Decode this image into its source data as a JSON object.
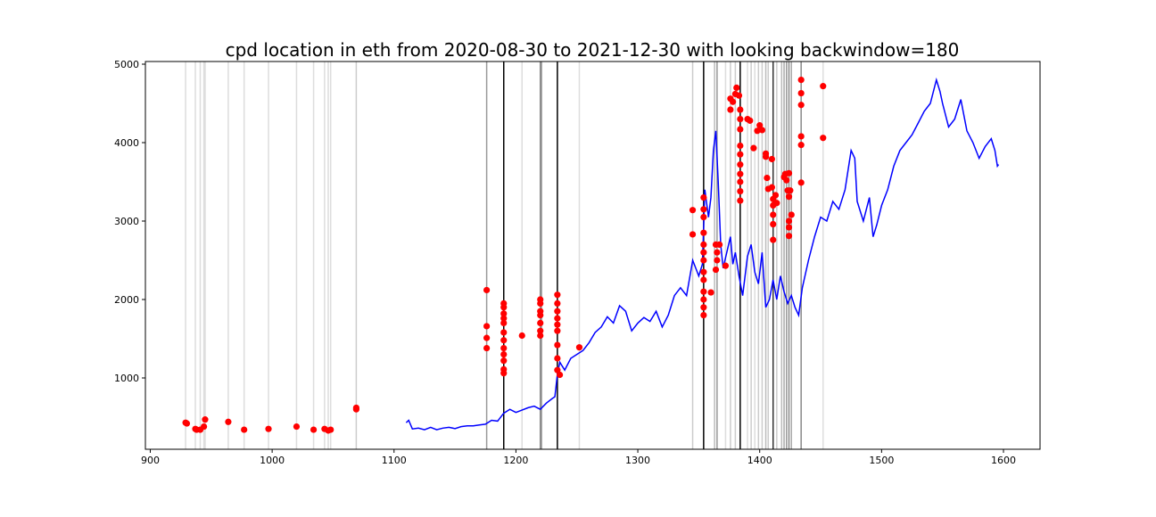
{
  "chart_data": {
    "type": "line",
    "title": "cpd location in eth from 2020-08-30 to 2021-12-30 with looking backwindow=180",
    "xlim": [
      896,
      1630
    ],
    "ylim": [
      91,
      5034
    ],
    "xticks": [
      900,
      1000,
      1100,
      1200,
      1300,
      1400,
      1500,
      1600
    ],
    "yticks": [
      1000,
      2000,
      3000,
      4000,
      5000
    ],
    "vlines": [
      {
        "x": 929,
        "color": "#dddddd"
      },
      {
        "x": 937,
        "color": "#dddddd"
      },
      {
        "x": 941,
        "color": "#dddddd"
      },
      {
        "x": 944,
        "color": "#dddddd"
      },
      {
        "x": 945,
        "color": "#dddddd"
      },
      {
        "x": 964,
        "color": "#dddddd"
      },
      {
        "x": 977,
        "color": "#dddddd"
      },
      {
        "x": 997,
        "color": "#dddddd"
      },
      {
        "x": 1020,
        "color": "#dddddd"
      },
      {
        "x": 1034,
        "color": "#dddddd"
      },
      {
        "x": 1043,
        "color": "#dddddd"
      },
      {
        "x": 1046,
        "color": "#dddddd"
      },
      {
        "x": 1048,
        "color": "#dddddd"
      },
      {
        "x": 1069,
        "color": "#cccccc"
      },
      {
        "x": 1176,
        "color": "#999999"
      },
      {
        "x": 1190,
        "color": "#000000"
      },
      {
        "x": 1205,
        "color": "#dddddd"
      },
      {
        "x": 1220,
        "color": "#888888"
      },
      {
        "x": 1221,
        "color": "#999999"
      },
      {
        "x": 1234,
        "color": "#000000"
      },
      {
        "x": 1252,
        "color": "#dddddd"
      },
      {
        "x": 1345,
        "color": "#cccccc"
      },
      {
        "x": 1354,
        "color": "#000000"
      },
      {
        "x": 1363,
        "color": "#bbbbbb"
      },
      {
        "x": 1365,
        "color": "#999999"
      },
      {
        "x": 1372,
        "color": "#dddddd"
      },
      {
        "x": 1376,
        "color": "#cccccc"
      },
      {
        "x": 1380,
        "color": "#cccccc"
      },
      {
        "x": 1384,
        "color": "#000000"
      },
      {
        "x": 1390,
        "color": "#dddddd"
      },
      {
        "x": 1393,
        "color": "#cccccc"
      },
      {
        "x": 1396,
        "color": "#dddddd"
      },
      {
        "x": 1399,
        "color": "#cccccc"
      },
      {
        "x": 1402,
        "color": "#cccccc"
      },
      {
        "x": 1405,
        "color": "#bbbbbb"
      },
      {
        "x": 1407,
        "color": "#cccccc"
      },
      {
        "x": 1411,
        "color": "#333333"
      },
      {
        "x": 1414,
        "color": "#cccccc"
      },
      {
        "x": 1418,
        "color": "#bbbbbb"
      },
      {
        "x": 1420,
        "color": "#aaaaaa"
      },
      {
        "x": 1422,
        "color": "#999999"
      },
      {
        "x": 1424,
        "color": "#888888"
      },
      {
        "x": 1426,
        "color": "#aaaaaa"
      },
      {
        "x": 1434,
        "color": "#888888"
      },
      {
        "x": 1452,
        "color": "#dddddd"
      }
    ],
    "series": [
      {
        "type": "line",
        "color": "#0000ff",
        "x": [
          1110,
          1112,
          1115,
          1120,
          1125,
          1130,
          1135,
          1140,
          1145,
          1150,
          1155,
          1160,
          1165,
          1170,
          1175,
          1180,
          1185,
          1190,
          1195,
          1200,
          1205,
          1210,
          1215,
          1220,
          1225,
          1230,
          1232,
          1234,
          1236,
          1240,
          1245,
          1250,
          1255,
          1260,
          1265,
          1270,
          1275,
          1280,
          1285,
          1290,
          1295,
          1300,
          1305,
          1310,
          1315,
          1320,
          1325,
          1330,
          1335,
          1340,
          1345,
          1350,
          1353,
          1355,
          1358,
          1360,
          1362,
          1364,
          1366,
          1368,
          1370,
          1373,
          1376,
          1378,
          1380,
          1383,
          1386,
          1390,
          1393,
          1396,
          1399,
          1402,
          1405,
          1408,
          1411,
          1414,
          1417,
          1420,
          1423,
          1426,
          1429,
          1432,
          1435,
          1440,
          1445,
          1450,
          1455,
          1460,
          1465,
          1470,
          1475,
          1478,
          1480,
          1485,
          1490,
          1493,
          1496,
          1500,
          1505,
          1510,
          1515,
          1520,
          1525,
          1530,
          1535,
          1540,
          1545,
          1548,
          1550,
          1555,
          1560,
          1565,
          1570,
          1575,
          1580,
          1585,
          1590,
          1593,
          1595,
          1596
        ],
        "values": [
          430,
          460,
          350,
          360,
          340,
          370,
          340,
          360,
          370,
          355,
          380,
          390,
          390,
          400,
          410,
          460,
          450,
          550,
          600,
          560,
          590,
          620,
          640,
          600,
          680,
          740,
          760,
          1050,
          1200,
          1100,
          1250,
          1300,
          1350,
          1450,
          1580,
          1650,
          1780,
          1700,
          1920,
          1850,
          1600,
          1700,
          1770,
          1720,
          1850,
          1650,
          1800,
          2050,
          2150,
          2050,
          2500,
          2300,
          2450,
          3400,
          3050,
          3300,
          3900,
          4150,
          3500,
          2700,
          2400,
          2600,
          2800,
          2450,
          2600,
          2300,
          2050,
          2550,
          2700,
          2350,
          2200,
          2600,
          1900,
          2000,
          2250,
          2000,
          2300,
          2100,
          1950,
          2050,
          1900,
          1800,
          2150,
          2500,
          2800,
          3050,
          3000,
          3250,
          3150,
          3400,
          3900,
          3800,
          3250,
          3000,
          3300,
          2800,
          2950,
          3200,
          3400,
          3700,
          3900,
          4000,
          4100,
          4250,
          4400,
          4500,
          4800,
          4650,
          4500,
          4200,
          4300,
          4550,
          4150,
          4000,
          3800,
          3950,
          4050,
          3900,
          3700,
          3720
        ]
      },
      {
        "type": "scatter",
        "color": "#ff0000",
        "x": [
          929,
          930,
          937,
          938,
          941,
          944,
          945,
          964,
          977,
          997,
          1020,
          1034,
          1043,
          1046,
          1048,
          1069,
          1069,
          1176,
          1176,
          1176,
          1176,
          1190,
          1190,
          1190,
          1190,
          1190,
          1190,
          1190,
          1190,
          1190,
          1190,
          1190,
          1190,
          1205,
          1220,
          1220,
          1220,
          1220,
          1220,
          1220,
          1220,
          1234,
          1234,
          1234,
          1234,
          1234,
          1234,
          1234,
          1234,
          1234,
          1236,
          1252,
          1345,
          1345,
          1354,
          1354,
          1354,
          1354,
          1354,
          1354,
          1354,
          1354,
          1354,
          1354,
          1354,
          1354,
          1354,
          1360,
          1364,
          1365,
          1365,
          1364,
          1367,
          1372,
          1376,
          1376,
          1378,
          1380,
          1381,
          1383,
          1384,
          1384,
          1384,
          1384,
          1384,
          1384,
          1384,
          1384,
          1384,
          1384,
          1390,
          1392,
          1395,
          1398,
          1400,
          1402,
          1405,
          1405,
          1406,
          1407,
          1410,
          1410,
          1411,
          1411,
          1411,
          1411,
          1411,
          1413,
          1414,
          1420,
          1421,
          1422,
          1423,
          1424,
          1425,
          1424,
          1424,
          1424,
          1424,
          1426,
          1434,
          1434,
          1434,
          1434,
          1434,
          1434,
          1452,
          1452
        ],
        "values": [
          430,
          420,
          350,
          340,
          340,
          380,
          470,
          440,
          340,
          350,
          380,
          340,
          350,
          330,
          340,
          620,
          600,
          2120,
          1660,
          1510,
          1380,
          1950,
          1900,
          1820,
          1760,
          1700,
          1580,
          1480,
          1380,
          1300,
          1220,
          1110,
          1060,
          1540,
          2000,
          1950,
          1850,
          1800,
          1700,
          1600,
          1540,
          2060,
          1950,
          1850,
          1760,
          1680,
          1600,
          1420,
          1250,
          1100,
          1040,
          1390,
          3140,
          2830,
          3300,
          3150,
          3050,
          2850,
          2700,
          2600,
          2500,
          2350,
          2250,
          2100,
          2000,
          1900,
          1800,
          2090,
          2700,
          2600,
          2500,
          2380,
          2700,
          2430,
          4560,
          4420,
          4520,
          4620,
          4700,
          4600,
          4420,
          4300,
          4170,
          3960,
          3850,
          3720,
          3600,
          3500,
          3380,
          3260,
          4300,
          4280,
          3930,
          4150,
          4220,
          4160,
          3860,
          3820,
          3550,
          3410,
          3790,
          3430,
          3280,
          3200,
          3080,
          2960,
          2760,
          3330,
          3230,
          3560,
          3600,
          3520,
          3390,
          3610,
          3390,
          3310,
          3000,
          2920,
          2810,
          3080,
          4800,
          4630,
          4480,
          4080,
          3970,
          3490,
          4720,
          4060
        ]
      }
    ]
  }
}
